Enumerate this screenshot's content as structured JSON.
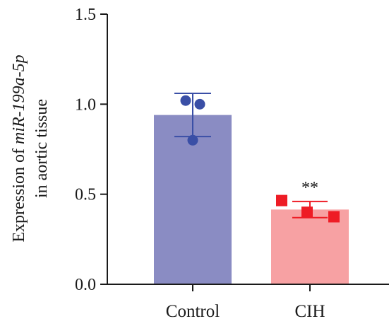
{
  "chart_data": {
    "type": "bar",
    "categories": [
      "Control",
      "CIH"
    ],
    "values": [
      0.94,
      0.415
    ],
    "error": [
      0.12,
      0.045
    ],
    "points": [
      [
        1.02,
        1.0,
        0.8
      ],
      [
        0.465,
        0.4,
        0.375
      ]
    ],
    "significance": [
      "",
      "**"
    ],
    "ylabel_prefix": "Expression of ",
    "ylabel_italic": "miR-199a-5p",
    "ylabel_line2": "in aortic tissue",
    "ylim": [
      0,
      1.5
    ],
    "yticks": [
      "0.0",
      "0.5",
      "1.0",
      "1.5"
    ],
    "grid": false,
    "colors": {
      "bars": [
        "#8a8cc3",
        "#f7a1a3"
      ],
      "points": [
        "#3a4fa6",
        "#ee1c25"
      ],
      "axis": "#1a1a1a"
    },
    "markers": [
      "circle",
      "square"
    ]
  }
}
